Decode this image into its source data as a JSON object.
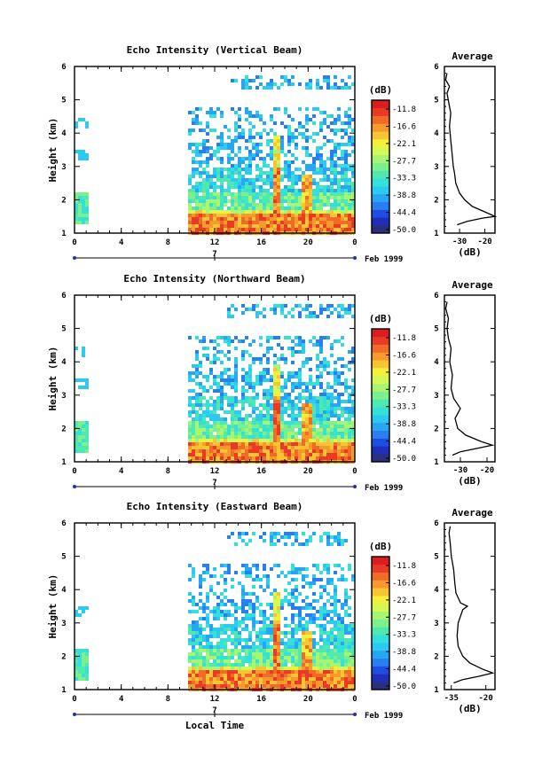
{
  "colors": {
    "scale": [
      "#2b2f7c",
      "#1f2fb8",
      "#1e4ee0",
      "#2a7ff0",
      "#27a6f2",
      "#2cc9f0",
      "#35e0d8",
      "#4ee8b0",
      "#7cf08c",
      "#a7f570",
      "#d4f855",
      "#f3f03c",
      "#f8c433",
      "#f59a2c",
      "#f06a28",
      "#e83a24",
      "#d91e22"
    ]
  },
  "colorbar": {
    "unit": "(dB)",
    "labels": [
      "-11.8",
      "-16.6",
      "-22.1",
      "-27.7",
      "-33.3",
      "-38.8",
      "-44.4",
      "-50.0"
    ]
  },
  "common": {
    "xticks": [
      "0",
      "4",
      "8",
      "12",
      "16",
      "20",
      "0"
    ],
    "yticks": [
      "1",
      "2",
      "3",
      "4",
      "5",
      "6"
    ],
    "ylabel": "Height (km)",
    "date_day": "7",
    "date_label": "Feb 1999",
    "xlabel": "Local Time",
    "avg_title": "Average",
    "avg_xlabel": "(dB)"
  },
  "chart_data": [
    {
      "type": "heatmap",
      "title": "Echo Intensity (Vertical Beam)",
      "xlim": [
        0,
        24
      ],
      "ylim": [
        1,
        6
      ],
      "x_units": "hours local time",
      "y_units": "km",
      "data_gap_hours": [
        1,
        9.5
      ],
      "max_echo": {
        "height_km": 1.5,
        "time_hours": [
          10,
          23
        ],
        "value_db": -11.8
      },
      "profile": {
        "type": "line",
        "title": "Average",
        "xticks": [
          "-30",
          "-20"
        ],
        "xlim": [
          -36,
          -16
        ],
        "heights": [
          1.25,
          1.35,
          1.45,
          1.5,
          1.6,
          1.8,
          2.0,
          2.2,
          2.5,
          2.8,
          3.0,
          3.4,
          3.8,
          4.2,
          4.6,
          5.0,
          5.2,
          5.4,
          5.6,
          5.8
        ],
        "values": [
          -31,
          -27,
          -21,
          -16,
          -19,
          -25,
          -28,
          -30,
          -31.5,
          -32,
          -32.5,
          -33,
          -33.5,
          -34,
          -33.5,
          -34.5,
          -35,
          -34,
          -35.5,
          -35
        ]
      }
    },
    {
      "type": "heatmap",
      "title": "Echo Intensity (Northward Beam)",
      "xlim": [
        0,
        24
      ],
      "ylim": [
        1,
        6
      ],
      "x_units": "hours local time",
      "y_units": "km",
      "data_gap_hours": [
        1,
        9.5
      ],
      "max_echo": {
        "height_km": 1.5,
        "time_hours": [
          10,
          23
        ],
        "value_db": -11.8
      },
      "profile": {
        "type": "line",
        "title": "Average",
        "xticks": [
          "-30",
          "-20"
        ],
        "xlim": [
          -36,
          -17
        ],
        "heights": [
          1.2,
          1.3,
          1.4,
          1.5,
          1.6,
          1.8,
          2.0,
          2.3,
          2.6,
          2.9,
          3.2,
          3.6,
          4.0,
          4.4,
          4.7,
          5.0,
          5.3,
          5.6,
          5.8
        ],
        "values": [
          -33,
          -30,
          -24,
          -18,
          -22,
          -28,
          -31,
          -32,
          -30,
          -32.5,
          -33.5,
          -33,
          -34,
          -33.5,
          -34.5,
          -35,
          -34.5,
          -35.5,
          -35
        ]
      }
    },
    {
      "type": "heatmap",
      "title": "Echo Intensity (Eastward Beam)",
      "xlim": [
        0,
        24
      ],
      "ylim": [
        1,
        6
      ],
      "x_units": "hours local time",
      "y_units": "km",
      "data_gap_hours": [
        1,
        9.5
      ],
      "max_echo": {
        "height_km": 1.5,
        "time_hours": [
          10,
          23
        ],
        "value_db": -11.8
      },
      "profile": {
        "type": "line",
        "title": "Average",
        "xticks": [
          "-35",
          "-20"
        ],
        "xlim": [
          -38,
          -16
        ],
        "heights": [
          1.2,
          1.3,
          1.4,
          1.5,
          1.6,
          1.8,
          2.0,
          2.3,
          2.6,
          3.0,
          3.4,
          3.5,
          3.6,
          3.9,
          4.2,
          4.6,
          5.0,
          5.4,
          5.7,
          5.9
        ],
        "values": [
          -34,
          -30,
          -23,
          -17,
          -21,
          -27,
          -30,
          -32,
          -32.5,
          -32,
          -30,
          -28,
          -31,
          -33,
          -33.5,
          -34,
          -35,
          -35.5,
          -36,
          -35.5
        ]
      }
    }
  ]
}
